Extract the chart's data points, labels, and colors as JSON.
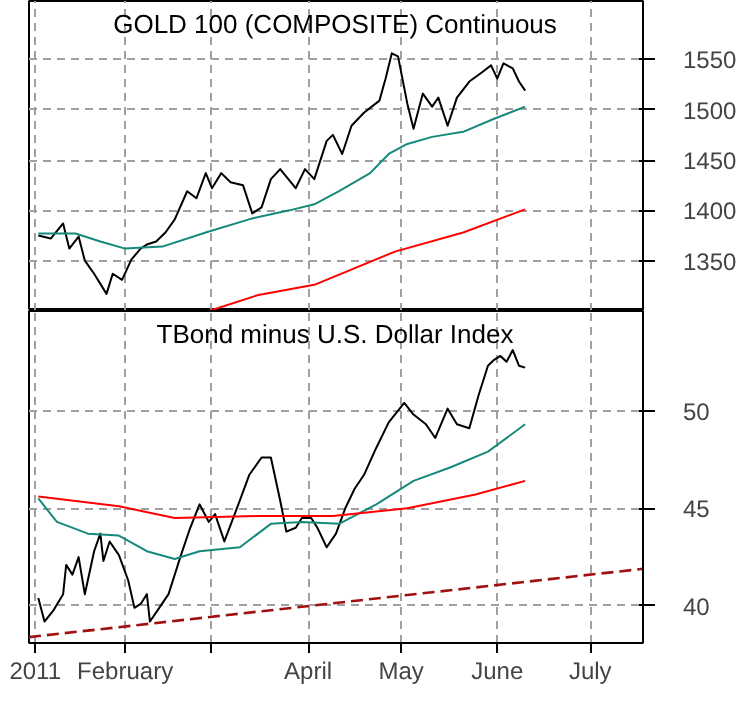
{
  "chart_data": [
    {
      "type": "line",
      "title": "GOLD 100 (COMPOSITE) Continuous",
      "xlim": [
        "2011-01-01",
        "2011-07-18"
      ],
      "ylim": [
        1300,
        1608
      ],
      "yticks": [
        1350,
        1400,
        1450,
        1500,
        1550
      ],
      "xticks": [
        {
          "value": "2011-01-03",
          "label": null
        },
        {
          "value": "2011-02-01",
          "label": null
        },
        {
          "value": "2011-03-01",
          "label": null
        },
        {
          "value": "2011-04-01",
          "label": null
        },
        {
          "value": "2011-05-01",
          "label": null
        },
        {
          "value": "2011-06-01",
          "label": null
        },
        {
          "value": "2011-07-01",
          "label": null
        }
      ],
      "grid": true,
      "tick_labels": "y",
      "marker": "none",
      "series": [
        {
          "color": "#000000",
          "x": [
            "2011-01-04",
            "2011-01-08",
            "2011-01-12",
            "2011-01-14",
            "2011-01-17",
            "2011-01-19",
            "2011-01-22",
            "2011-01-26",
            "2011-01-28",
            "2011-01-31",
            "2011-02-03",
            "2011-02-06",
            "2011-02-08",
            "2011-02-11",
            "2011-02-14",
            "2011-02-17",
            "2011-02-21",
            "2011-02-24",
            "2011-02-27",
            "2011-03-01",
            "2011-03-04",
            "2011-03-07",
            "2011-03-11",
            "2011-03-14",
            "2011-03-17",
            "2011-03-20",
            "2011-03-23",
            "2011-03-28",
            "2011-03-31",
            "2011-04-03",
            "2011-04-07",
            "2011-04-09",
            "2011-04-12",
            "2011-04-15",
            "2011-04-19",
            "2011-04-24",
            "2011-04-26",
            "2011-04-28",
            "2011-04-30",
            "2011-05-03",
            "2011-05-05",
            "2011-05-08",
            "2011-05-11",
            "2011-05-13",
            "2011-05-16",
            "2011-05-19",
            "2011-05-23",
            "2011-05-27",
            "2011-05-30",
            "2011-06-01",
            "2011-06-03",
            "2011-06-06",
            "2011-06-08",
            "2011-06-10"
          ],
          "values": [
            1375,
            1372,
            1387,
            1362,
            1374,
            1350,
            1337,
            1317,
            1337,
            1331,
            1351,
            1362,
            1366,
            1369,
            1378,
            1391,
            1419,
            1412,
            1437,
            1422,
            1437,
            1428,
            1425,
            1397,
            1403,
            1431,
            1441,
            1422,
            1441,
            1431,
            1469,
            1475,
            1456,
            1484,
            1497,
            1509,
            1531,
            1556,
            1553,
            1506,
            1481,
            1516,
            1503,
            1512,
            1484,
            1512,
            1528,
            1537,
            1544,
            1531,
            1546,
            1541,
            1528,
            1519
          ]
        },
        {
          "color": "#168a7a",
          "x": [
            "2011-01-04",
            "2011-01-16",
            "2011-01-24",
            "2011-02-01",
            "2011-02-13",
            "2011-02-27",
            "2011-03-14",
            "2011-03-26",
            "2011-04-03",
            "2011-04-11",
            "2011-04-21",
            "2011-04-27",
            "2011-05-03",
            "2011-05-11",
            "2011-05-21",
            "2011-05-31",
            "2011-06-10"
          ],
          "values": [
            1377,
            1377,
            1369,
            1362,
            1364,
            1378,
            1392,
            1400,
            1406,
            1419,
            1437,
            1456,
            1466,
            1473,
            1478,
            1491,
            1503
          ]
        },
        {
          "color": "#ff0000",
          "x": [
            "2011-02-28",
            "2011-03-16",
            "2011-04-03",
            "2011-04-29",
            "2011-05-21",
            "2011-06-10"
          ],
          "values": [
            1300,
            1316,
            1326,
            1359,
            1378,
            1401
          ]
        }
      ]
    },
    {
      "type": "line",
      "title": "TBond minus U.S. Dollar Index",
      "xlim": [
        "2011-01-01",
        "2011-07-18"
      ],
      "ylim": [
        38.1,
        55.1
      ],
      "yticks": [
        40,
        45,
        50
      ],
      "xticks": [
        {
          "value": "2011-01-03",
          "label": "2011"
        },
        {
          "value": "2011-02-01",
          "label": "February"
        },
        {
          "value": "2011-03-01",
          "label": null
        },
        {
          "value": "2011-04-01",
          "label": "April"
        },
        {
          "value": "2011-05-01",
          "label": "May"
        },
        {
          "value": "2011-06-01",
          "label": "June"
        },
        {
          "value": "2011-07-01",
          "label": "July"
        }
      ],
      "grid": true,
      "marker": "none",
      "series": [
        {
          "color": "#000000",
          "x": [
            "2011-01-04",
            "2011-01-06",
            "2011-01-09",
            "2011-01-12",
            "2011-01-13",
            "2011-01-15",
            "2011-01-17",
            "2011-01-19",
            "2011-01-22",
            "2011-01-24",
            "2011-01-25",
            "2011-01-27",
            "2011-01-30",
            "2011-02-02",
            "2011-02-04",
            "2011-02-06",
            "2011-02-08",
            "2011-02-09",
            "2011-02-12",
            "2011-02-15",
            "2011-02-17",
            "2011-02-19",
            "2011-02-22",
            "2011-02-25",
            "2011-02-28",
            "2011-03-02",
            "2011-03-05",
            "2011-03-10",
            "2011-03-13",
            "2011-03-17",
            "2011-03-20",
            "2011-03-23",
            "2011-03-25",
            "2011-03-28",
            "2011-03-30",
            "2011-04-02",
            "2011-04-04",
            "2011-04-07",
            "2011-04-10",
            "2011-04-13",
            "2011-04-16",
            "2011-04-19",
            "2011-04-23",
            "2011-04-27",
            "2011-05-02",
            "2011-05-05",
            "2011-05-09",
            "2011-05-12",
            "2011-05-16",
            "2011-05-19",
            "2011-05-23",
            "2011-05-26",
            "2011-05-29",
            "2011-05-31",
            "2011-06-02",
            "2011-06-04",
            "2011-06-06",
            "2011-06-08",
            "2011-06-10"
          ],
          "values": [
            40.4,
            39.2,
            39.8,
            40.6,
            42.1,
            41.6,
            42.5,
            40.6,
            42.8,
            43.7,
            42.3,
            43.3,
            42.6,
            41.3,
            39.9,
            40.1,
            40.6,
            39.2,
            39.9,
            40.6,
            41.6,
            42.6,
            44.0,
            45.2,
            44.3,
            44.7,
            43.3,
            45.4,
            46.7,
            47.6,
            47.6,
            45.4,
            43.8,
            44.0,
            44.5,
            44.5,
            44.0,
            43.0,
            43.7,
            45.0,
            46.0,
            46.7,
            48.1,
            49.4,
            50.4,
            49.8,
            49.3,
            48.6,
            50.1,
            49.3,
            49.1,
            50.8,
            52.3,
            52.6,
            52.8,
            52.5,
            53.1,
            52.3,
            52.2
          ]
        },
        {
          "color": "#168a7a",
          "x": [
            "2011-01-04",
            "2011-01-10",
            "2011-01-20",
            "2011-01-30",
            "2011-02-08",
            "2011-02-17",
            "2011-02-25",
            "2011-03-10",
            "2011-03-20",
            "2011-03-30",
            "2011-04-11",
            "2011-04-23",
            "2011-05-05",
            "2011-05-17",
            "2011-05-29",
            "2011-06-10"
          ],
          "values": [
            45.5,
            44.3,
            43.7,
            43.6,
            42.8,
            42.4,
            42.8,
            43.0,
            44.2,
            44.3,
            44.2,
            45.2,
            46.4,
            47.1,
            47.9,
            49.3
          ]
        },
        {
          "color": "#ff0000",
          "x": [
            "2011-01-04",
            "2011-01-30",
            "2011-02-17",
            "2011-03-16",
            "2011-04-09",
            "2011-05-03",
            "2011-05-25",
            "2011-06-10"
          ],
          "values": [
            45.6,
            45.1,
            44.5,
            44.6,
            44.6,
            45.0,
            45.7,
            46.4
          ]
        },
        {
          "color": "#a01010",
          "line_style": "dashed",
          "x": [
            "2011-01-01",
            "2011-07-18"
          ],
          "values": [
            38.4,
            41.9
          ]
        }
      ]
    }
  ]
}
